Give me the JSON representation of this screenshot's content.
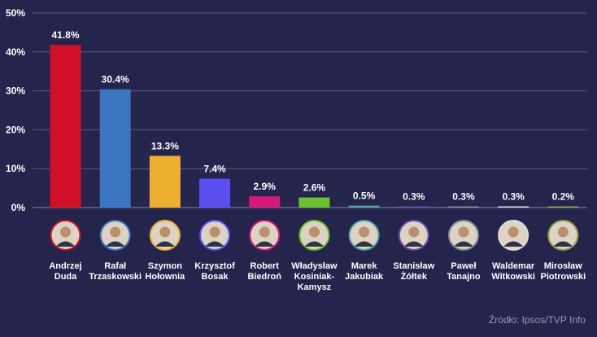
{
  "chart_data": {
    "type": "bar",
    "title": "",
    "xlabel": "",
    "ylabel": "",
    "ylim": [
      0,
      50
    ],
    "yticks": [
      0,
      10,
      20,
      30,
      40,
      50
    ],
    "ytick_labels": [
      "0%",
      "10%",
      "20%",
      "30%",
      "40%",
      "50%"
    ],
    "grid": true,
    "categories": [
      "Andrzej Duda",
      "Rafał Trzaskowski",
      "Szymon Hołownia",
      "Krzysztof Bosak",
      "Robert Biedroń",
      "Władysław Kosiniak-Kamysz",
      "Marek Jakubiak",
      "Stanisław Żółtek",
      "Paweł Tanajno",
      "Waldemar Witkowski",
      "Mirosław Piotrowski"
    ],
    "category_lines": [
      [
        "Andrzej",
        "Duda"
      ],
      [
        "Rafał",
        "Trzaskowski"
      ],
      [
        "Szymon",
        "Hołownia"
      ],
      [
        "Krzysztof",
        "Bosak"
      ],
      [
        "Robert",
        "Biedroń"
      ],
      [
        "Władysław",
        "Kosiniak-",
        "Kamysz"
      ],
      [
        "Marek",
        "Jakubiak"
      ],
      [
        "Stanisław",
        "Żółtek"
      ],
      [
        "Paweł",
        "Tanajno"
      ],
      [
        "Waldemar",
        "Witkowski"
      ],
      [
        "Mirosław",
        "Piotrowski"
      ]
    ],
    "values": [
      41.8,
      30.4,
      13.3,
      7.4,
      2.9,
      2.6,
      0.5,
      0.3,
      0.3,
      0.3,
      0.2
    ],
    "value_labels": [
      "41.8%",
      "30.4%",
      "13.3%",
      "7.4%",
      "2.9%",
      "2.6%",
      "0.5%",
      "0.3%",
      "0.3%",
      "0.3%",
      "0.2%"
    ],
    "colors": [
      "#d01026",
      "#3d76c0",
      "#eeb030",
      "#5b4ff0",
      "#d41979",
      "#69c22e",
      "#52a3a3",
      "#6e48a8",
      "#8a8a9e",
      "#dcdcdc",
      "#9aa14a"
    ]
  },
  "source": "Źródło: Ipsos/TVP Info"
}
